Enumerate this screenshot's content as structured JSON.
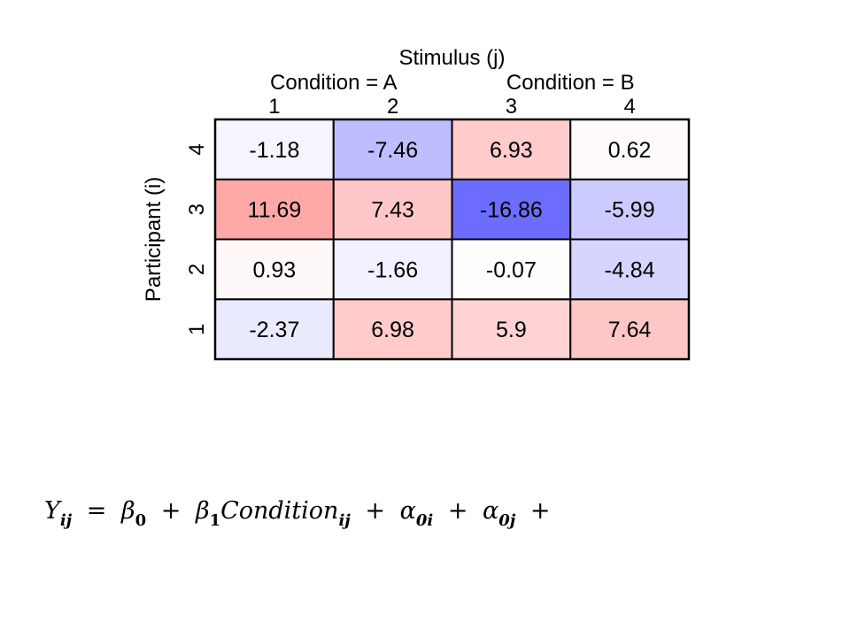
{
  "chart_data": {
    "type": "heatmap",
    "title": "Stimulus (j)",
    "ylabel": "Participant (i)",
    "condition_labels": [
      "Condition = A",
      "Condition = B"
    ],
    "x_categories": [
      "1",
      "2",
      "3",
      "4"
    ],
    "y_categories": [
      "1",
      "2",
      "3",
      "4"
    ],
    "values": [
      [
        -2.37,
        6.98,
        5.9,
        7.64
      ],
      [
        0.93,
        -1.66,
        -0.07,
        -4.84
      ],
      [
        11.69,
        7.43,
        -16.86,
        -5.99
      ],
      [
        -1.18,
        -7.46,
        6.93,
        0.62
      ]
    ],
    "value_labels": [
      [
        "-2.37",
        "6.98",
        "5.9",
        "7.64"
      ],
      [
        "0.93",
        "-1.66",
        "-0.07",
        "-4.84"
      ],
      [
        "11.69",
        "7.43",
        "-16.86",
        "-5.99"
      ],
      [
        "-1.18",
        "-7.46",
        "6.93",
        "0.62"
      ]
    ],
    "color_scale": {
      "negative": "#6b6bff",
      "zero": "#ffffff",
      "positive": "#ff8080",
      "limit": 17
    }
  },
  "equation": {
    "Y": "Y",
    "Y_sub": "ij",
    "eq": "=",
    "beta0": "β",
    "beta0_sub": "0",
    "plus1": "+",
    "beta1": "β",
    "beta1_sub": "1",
    "condition": "Condition",
    "condition_sub": "ij",
    "plus2": "+",
    "alpha0i": "α",
    "alpha0i_sub": "0i",
    "plus3": "+",
    "alpha0j": "α",
    "alpha0j_sub": "0j",
    "plus4": "+"
  }
}
